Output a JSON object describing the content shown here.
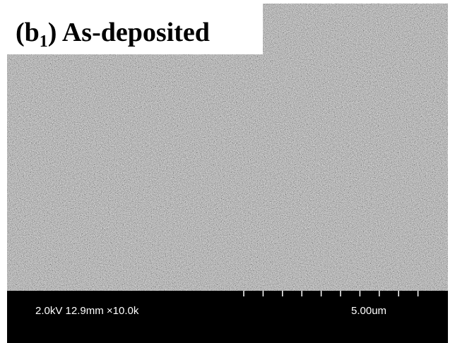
{
  "panel_label": {
    "prefix": "(b",
    "subscript": "1",
    "suffix": ") As-deposited"
  },
  "info_bar": {
    "conditions": "2.0kV 12.9mm ×10.0k",
    "scale_bar": "5.00um"
  }
}
